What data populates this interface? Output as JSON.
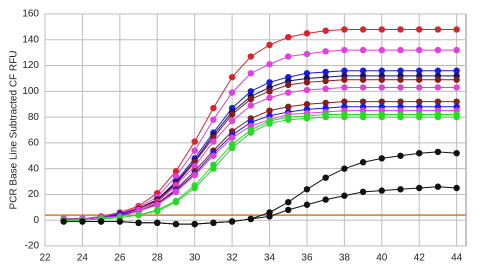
{
  "chart_data": {
    "type": "line",
    "y_label": "PCR Base Line Subtracted CF RFU",
    "x": [
      23,
      24,
      25,
      26,
      27,
      28,
      29,
      30,
      31,
      32,
      33,
      34,
      35,
      36,
      37,
      38,
      39,
      40,
      41,
      42,
      43,
      44
    ],
    "xlim": [
      22,
      44.5
    ],
    "xticks": [
      22,
      24,
      26,
      28,
      30,
      32,
      34,
      36,
      38,
      40,
      42,
      44
    ],
    "ylim": [
      -20,
      160
    ],
    "yticks": [
      -20,
      0,
      20,
      40,
      60,
      80,
      100,
      120,
      140,
      160
    ],
    "grid": true,
    "threshold": 4,
    "threshold_color": "#e8761c",
    "series": [
      {
        "color": "#e3202a",
        "values": [
          1,
          1,
          3,
          6,
          11,
          21,
          38,
          61,
          87,
          111,
          127,
          136,
          142,
          145,
          147,
          148,
          148,
          148,
          148,
          148,
          148,
          148
        ]
      },
      {
        "color": "#e23ee0",
        "values": [
          1,
          1,
          3,
          5,
          10,
          18,
          34,
          54,
          78,
          99,
          114,
          121,
          127,
          129,
          131,
          132,
          132,
          132,
          132,
          132,
          132,
          132
        ]
      },
      {
        "color": "#1a1ae6",
        "values": [
          1,
          1,
          2,
          5,
          9,
          16,
          30,
          48,
          68,
          87,
          100,
          107,
          111,
          114,
          115,
          116,
          116,
          116,
          116,
          116,
          116,
          116
        ]
      },
      {
        "color": "#14146e",
        "values": [
          1,
          1,
          2,
          4,
          9,
          16,
          29,
          46,
          66,
          84,
          96,
          103,
          108,
          110,
          111,
          112,
          112,
          112,
          112,
          112,
          112,
          112
        ]
      },
      {
        "color": "#8c1c1c",
        "values": [
          1,
          1,
          2,
          4,
          9,
          15,
          28,
          45,
          64,
          82,
          94,
          100,
          105,
          107,
          108,
          109,
          109,
          109,
          109,
          109,
          109,
          109
        ]
      },
      {
        "color": "#e23ee0",
        "values": [
          1,
          1,
          2,
          4,
          8,
          14,
          27,
          42,
          61,
          77,
          89,
          95,
          99,
          101,
          102,
          103,
          103,
          103,
          103,
          103,
          103,
          103
        ]
      },
      {
        "color": "#8c1c1c",
        "values": [
          0,
          1,
          2,
          4,
          7,
          13,
          24,
          38,
          54,
          69,
          79,
          85,
          88,
          90,
          91,
          92,
          92,
          92,
          92,
          92,
          92,
          92
        ]
      },
      {
        "color": "#1a1ae6",
        "values": [
          0,
          1,
          2,
          4,
          7,
          12,
          23,
          36,
          52,
          66,
          76,
          81,
          84,
          86,
          87,
          88,
          88,
          88,
          88,
          88,
          88,
          88
        ]
      },
      {
        "color": "#e23ee0",
        "values": [
          0,
          1,
          2,
          3,
          7,
          12,
          22,
          35,
          50,
          64,
          73,
          78,
          82,
          83,
          84,
          85,
          85,
          85,
          85,
          85,
          85,
          85
        ]
      },
      {
        "color": "#22dd22",
        "values": [
          0,
          0,
          1,
          2,
          4,
          8,
          15,
          27,
          43,
          59,
          70,
          77,
          80,
          81,
          82,
          82,
          82,
          82,
          82,
          82,
          82,
          82
        ]
      },
      {
        "color": "#22dd22",
        "values": [
          0,
          0,
          1,
          2,
          4,
          7,
          14,
          25,
          40,
          56,
          68,
          75,
          78,
          79,
          80,
          80,
          80,
          80,
          80,
          80,
          80,
          80
        ]
      },
      {
        "color": "#111111",
        "values": [
          -1,
          -1,
          -1,
          -1,
          -2,
          -2,
          -3,
          -3,
          -2,
          -1,
          1,
          6,
          14,
          24,
          33,
          40,
          45,
          48,
          50,
          52,
          53,
          52
        ]
      },
      {
        "color": "#111111",
        "values": [
          -1,
          -1,
          -1,
          -1,
          -2,
          -2,
          -3,
          -3,
          -2,
          -1,
          1,
          3,
          8,
          12,
          16,
          19,
          22,
          23,
          24,
          25,
          26,
          25
        ]
      }
    ]
  }
}
